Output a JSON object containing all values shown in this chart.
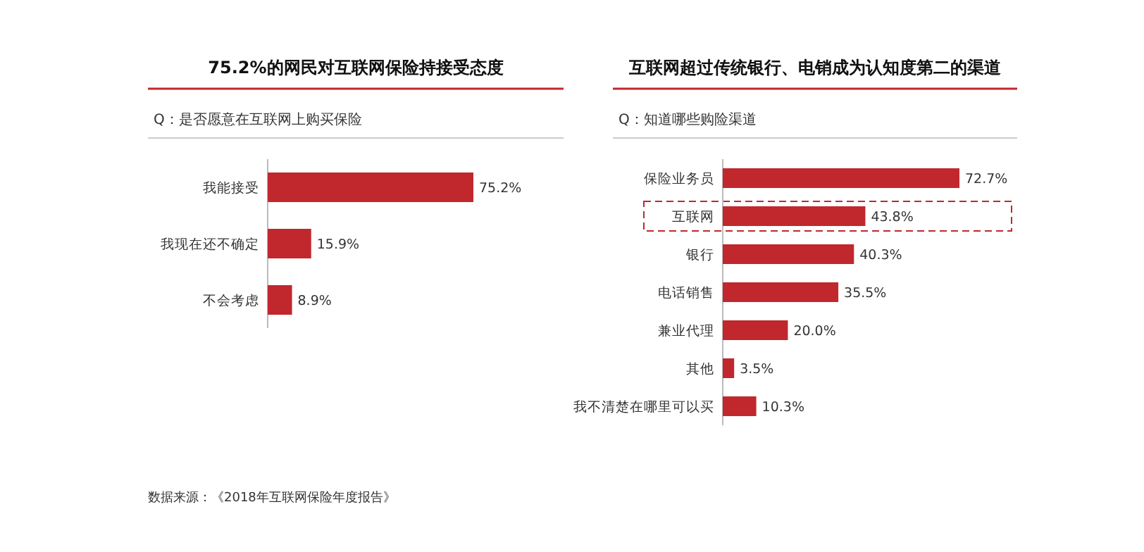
{
  "chart_data": [
    {
      "type": "bar",
      "orientation": "horizontal",
      "title": "75.2%的网民对互联网保险持接受态度",
      "subtitle": "Q：是否愿意在互联网上购买保险",
      "categories": [
        "我能接受",
        "我现在还不确定",
        "不会考虑"
      ],
      "values": [
        75.2,
        15.9,
        8.9
      ],
      "value_labels": [
        "75.2%",
        "15.9%",
        "8.9%"
      ],
      "color": "#c0282d",
      "annotations": [
        "数据来源：《2018年互联网保险年度报告》"
      ]
    },
    {
      "type": "bar",
      "orientation": "horizontal",
      "title": "互联网超过传统银行、电销成为认知度第二的渠道",
      "subtitle": "Q：知道哪些购险渠道",
      "categories": [
        "保险业务员",
        "互联网",
        "银行",
        "电话销售",
        "兼业代理",
        "其他",
        "我不清楚在哪里可以买"
      ],
      "values": [
        72.7,
        43.8,
        40.3,
        35.5,
        20.0,
        3.5,
        10.3
      ],
      "value_labels": [
        "72.7%",
        "43.8%",
        "40.3%",
        "35.5%",
        "20.0%",
        "3.5%",
        "10.3%"
      ],
      "color": "#c0282d"
    }
  ]
}
